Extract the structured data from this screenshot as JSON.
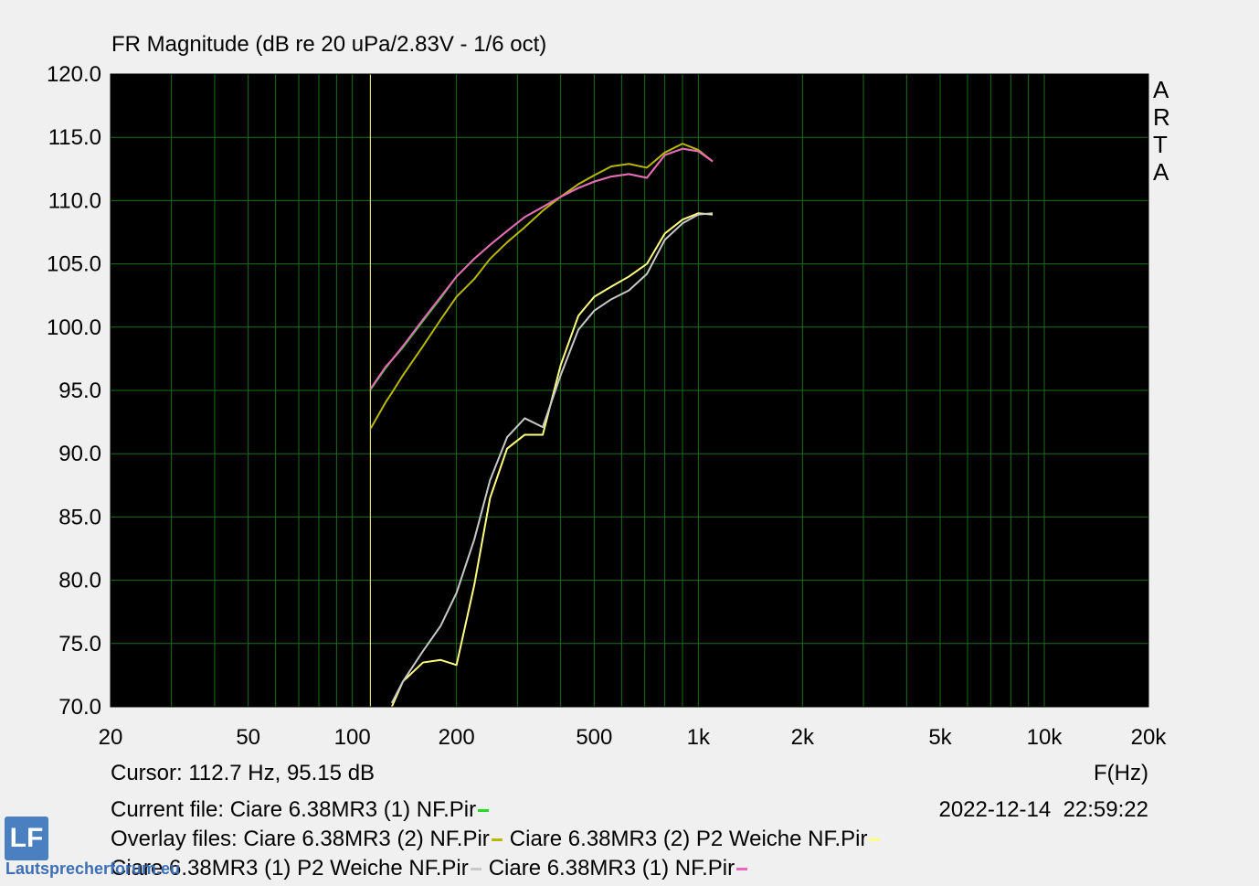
{
  "chart_data": {
    "type": "line",
    "title": "FR Magnitude (dB re 20 uPa/2.83V - 1/6 oct)",
    "x_label": "F(Hz)",
    "side_label": "ARTA",
    "cursor_label": "Cursor: 112.7 Hz, 95.15 dB",
    "cursor_x": 112.7,
    "current_label": "Current file:",
    "overlay_label": "Overlay files:",
    "timestamp": "2022-12-14  22:59:22",
    "logo": "LF",
    "watermark": "Lautsprecherforum.eu",
    "log_x": true,
    "grid": true,
    "xlim": [
      20,
      20000
    ],
    "ylim": [
      70,
      120
    ],
    "xticks": [
      20,
      50,
      100,
      200,
      500,
      {
        "value": 1000,
        "label": "1k"
      },
      {
        "value": 2000,
        "label": "2k"
      },
      {
        "value": 5000,
        "label": "5k"
      },
      {
        "value": 10000,
        "label": "10k"
      },
      {
        "value": 20000,
        "label": "20k"
      }
    ],
    "xgrid": [
      20,
      30,
      40,
      50,
      60,
      70,
      80,
      90,
      100,
      200,
      300,
      400,
      500,
      600,
      700,
      800,
      900,
      1000,
      2000,
      3000,
      4000,
      5000,
      6000,
      7000,
      8000,
      9000,
      10000,
      20000
    ],
    "yticks": [
      {
        "value": 70,
        "label": "70.0"
      },
      {
        "value": 75,
        "label": "75.0"
      },
      {
        "value": 80,
        "label": "80.0"
      },
      {
        "value": 85,
        "label": "85.0"
      },
      {
        "value": 90,
        "label": "90.0"
      },
      {
        "value": 95,
        "label": "95.0"
      },
      {
        "value": 100,
        "label": "100.0"
      },
      {
        "value": 105,
        "label": "105.0"
      },
      {
        "value": 110,
        "label": "110.0"
      },
      {
        "value": 115,
        "label": "115.0"
      },
      {
        "value": 120,
        "label": "120.0"
      }
    ],
    "x": [
      113,
      125,
      130,
      140,
      160,
      180,
      200,
      225,
      250,
      280,
      315,
      355,
      400,
      450,
      500,
      560,
      630,
      710,
      800,
      900,
      1000,
      1100
    ],
    "series": [
      {
        "name": "Ciare 6.38MR3 (1) NF.Pir",
        "color": "#22dd22",
        "values": [
          95.1,
          96.8,
          97.4,
          98.4,
          100.5,
          102.3,
          104.0,
          105.4,
          106.5,
          107.6,
          108.7,
          109.5,
          110.3,
          111.0,
          111.5,
          111.9,
          112.1,
          111.8,
          113.6,
          114.1,
          113.9,
          113.1
        ]
      },
      {
        "name": "Ciare 6.38MR3 (2) NF.Pir",
        "color": "#b8b800",
        "values": [
          92.0,
          94.1,
          94.8,
          96.2,
          98.5,
          100.6,
          102.4,
          103.8,
          105.4,
          106.7,
          107.9,
          109.2,
          110.3,
          111.3,
          112.0,
          112.7,
          112.9,
          112.6,
          113.8,
          114.5,
          114.0,
          113.1
        ]
      },
      {
        "name": "Ciare 6.38MR3 (2) P2 Weiche NF.Pir",
        "color": "#ffff80",
        "values": [
          null,
          null,
          70.0,
          72.0,
          73.5,
          73.7,
          73.3,
          79.6,
          86.5,
          90.4,
          91.5,
          91.5,
          97.0,
          100.9,
          102.4,
          103.2,
          104.0,
          105.0,
          107.4,
          108.5,
          109.0,
          108.9
        ]
      },
      {
        "name": "Ciare 6.38MR3 (1) P2 Weiche NF.Pir",
        "color": "#c8c8c8",
        "values": [
          null,
          null,
          70.3,
          72.0,
          74.4,
          76.4,
          79.0,
          83.2,
          87.9,
          91.3,
          92.8,
          92.1,
          96.2,
          99.8,
          101.3,
          102.2,
          102.9,
          104.2,
          106.9,
          108.2,
          108.9,
          109.0
        ]
      },
      {
        "name": "Ciare 6.38MR3 (1) NF.Pir",
        "color": "#ee66bb",
        "values": [
          95.15,
          96.9,
          97.4,
          98.5,
          100.6,
          102.4,
          104.0,
          105.4,
          106.5,
          107.6,
          108.7,
          109.5,
          110.3,
          111.0,
          111.5,
          111.9,
          112.1,
          111.8,
          113.6,
          114.1,
          113.9,
          113.1
        ]
      }
    ]
  }
}
